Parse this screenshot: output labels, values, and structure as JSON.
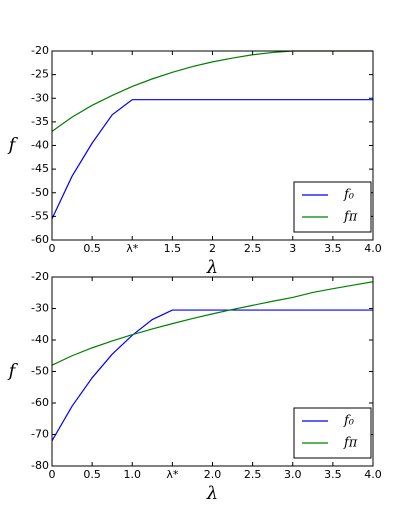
{
  "chart_data": [
    {
      "type": "line",
      "xlabel": "λ",
      "ylabel": "f",
      "x": [
        0,
        0.25,
        0.5,
        0.75,
        1,
        1.25,
        1.5,
        1.75,
        2,
        2.25,
        2.5,
        2.75,
        3,
        3.25,
        3.5,
        3.75,
        4
      ],
      "series": [
        {
          "name": "f₀",
          "color": "#0000ff",
          "values": [
            -55.5,
            -46.5,
            -39.5,
            -33.5,
            -30.3,
            -30.3,
            -30.3,
            -30.3,
            -30.3,
            -30.3,
            -30.3,
            -30.3,
            -30.3,
            -30.3,
            -30.3,
            -30.3,
            -30.3
          ]
        },
        {
          "name": "fπ",
          "color": "#008000",
          "values": [
            -37,
            -34,
            -31.5,
            -29.4,
            -27.5,
            -25.9,
            -24.5,
            -23.3,
            -22.3,
            -21.5,
            -20.8,
            -20.3,
            -20,
            -20,
            -20,
            -20,
            -20
          ]
        }
      ],
      "xlim": [
        0,
        4
      ],
      "ylim": [
        -60,
        -20
      ],
      "xticks": [
        0,
        0.5,
        {
          "value": 1,
          "label": "λ*"
        },
        1.5,
        2,
        2.5,
        3,
        3.5,
        {
          "value": 4,
          "label": "4.0"
        }
      ],
      "yticks": [
        -60,
        -55,
        -50,
        -45,
        -40,
        -35,
        -30,
        -25,
        -20
      ],
      "legend": "lower right"
    },
    {
      "type": "line",
      "xlabel": "λ",
      "ylabel": "f",
      "x": [
        0,
        0.25,
        0.5,
        0.75,
        1,
        1.25,
        1.5,
        1.75,
        2,
        2.25,
        2.5,
        2.75,
        3,
        3.25,
        3.5,
        3.75,
        4
      ],
      "series": [
        {
          "name": "f₀",
          "color": "#0000ff",
          "values": [
            -72,
            -61,
            -52,
            -44.5,
            -38.5,
            -33.5,
            -30.5,
            -30.5,
            -30.5,
            -30.5,
            -30.5,
            -30.5,
            -30.5,
            -30.5,
            -30.5,
            -30.5,
            -30.5
          ]
        },
        {
          "name": "fπ",
          "color": "#008000",
          "values": [
            -48,
            -45,
            -42.5,
            -40.3,
            -38.3,
            -36.5,
            -34.8,
            -33.2,
            -31.7,
            -30.3,
            -29,
            -27.7,
            -26.5,
            -24.9,
            -23.7,
            -22.6,
            -21.5
          ]
        }
      ],
      "xlim": [
        0,
        4
      ],
      "ylim": [
        -80,
        -20
      ],
      "xticks": [
        0,
        0.5,
        {
          "value": 1,
          "label": "1.0"
        },
        {
          "value": 1.5,
          "label": "λ*"
        },
        {
          "value": 2,
          "label": "2.0"
        },
        2.5,
        {
          "value": 3,
          "label": "3.0"
        },
        3.5,
        {
          "value": 4,
          "label": "4.0"
        }
      ],
      "yticks": [
        -80,
        -70,
        -60,
        -50,
        -40,
        -30,
        -20
      ],
      "legend": "lower right"
    }
  ]
}
